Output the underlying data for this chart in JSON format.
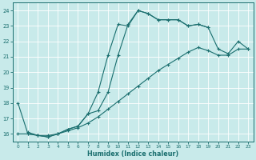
{
  "xlabel": "Humidex (Indice chaleur)",
  "bg_color": "#c8eaea",
  "line_color": "#1a6e6e",
  "grid_color": "#ffffff",
  "xlim": [
    -0.5,
    23.5
  ],
  "ylim": [
    15.5,
    24.5
  ],
  "yticks": [
    16,
    17,
    18,
    19,
    20,
    21,
    22,
    23,
    24
  ],
  "xticks": [
    0,
    1,
    2,
    3,
    4,
    5,
    6,
    7,
    8,
    9,
    10,
    11,
    12,
    13,
    14,
    15,
    16,
    17,
    18,
    19,
    20,
    21,
    22,
    23
  ],
  "line1_x": [
    0,
    1,
    2,
    3,
    4,
    5,
    6,
    7,
    8,
    9,
    10,
    11,
    12,
    13,
    14,
    15,
    16,
    17,
    18,
    19
  ],
  "line1_y": [
    18,
    16,
    15.9,
    15.8,
    16.0,
    16.3,
    16.5,
    17.3,
    18.7,
    21.1,
    23.1,
    23.0,
    24.0,
    23.8,
    23.4,
    23.4,
    23.4,
    23.0,
    23.1,
    22.9
  ],
  "line2_x": [
    1,
    2,
    3,
    4,
    5,
    6,
    7,
    8,
    9,
    10,
    11,
    12,
    13,
    14,
    15,
    16,
    17,
    18,
    19,
    20,
    21,
    22,
    23
  ],
  "line2_y": [
    16.1,
    15.9,
    15.8,
    16.0,
    16.3,
    16.5,
    17.3,
    17.5,
    18.7,
    21.1,
    23.1,
    24.0,
    23.8,
    23.4,
    23.4,
    23.4,
    23.0,
    23.1,
    22.9,
    21.5,
    21.2,
    22.0,
    21.5
  ],
  "line3_x": [
    0,
    1,
    2,
    3,
    4,
    5,
    6,
    7,
    8,
    9,
    10,
    11,
    12,
    13,
    14,
    15,
    16,
    17,
    18,
    19,
    20,
    21,
    22,
    23
  ],
  "line3_y": [
    16.0,
    16.0,
    15.9,
    15.9,
    16.0,
    16.2,
    16.4,
    16.7,
    17.1,
    17.6,
    18.1,
    18.6,
    19.1,
    19.6,
    20.1,
    20.5,
    20.9,
    21.3,
    21.6,
    21.4,
    21.1,
    21.1,
    21.5,
    21.5
  ]
}
